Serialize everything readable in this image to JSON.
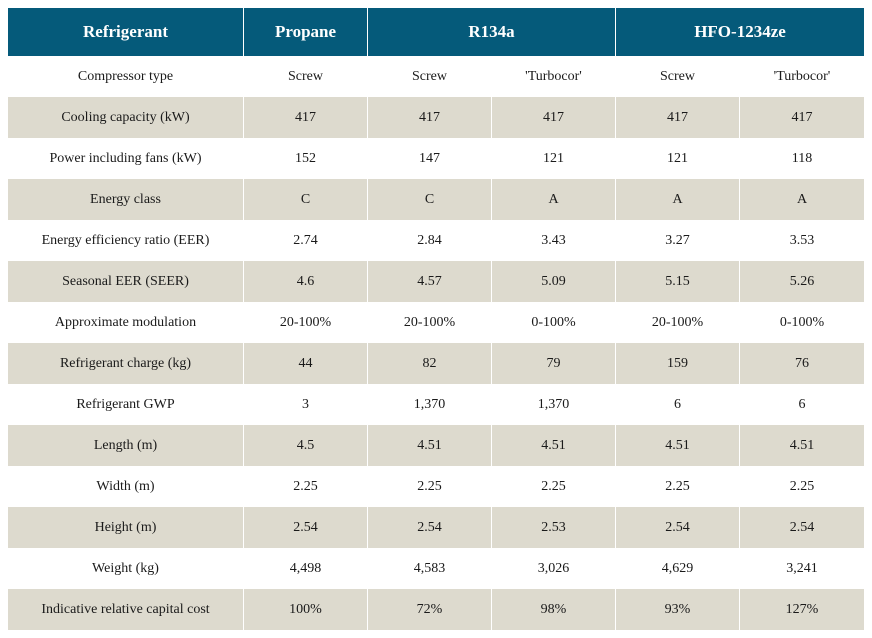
{
  "table": {
    "type": "table",
    "header_bg_color": "#055a7a",
    "header_text_color": "#ffffff",
    "row_odd_bg": "#ffffff",
    "row_even_bg": "#dddace",
    "text_color": "#1a1a1a",
    "header_fontsize": 17,
    "body_fontsize": 14,
    "headers": {
      "refrigerant": "Refrigerant",
      "propane": "Propane",
      "r134a": "R134a",
      "hfo": "HFO-1234ze"
    },
    "column_widths": {
      "label": 236,
      "propane": 124,
      "r134a_screw": 124,
      "r134a_turbo": 124,
      "hfo_screw": 124,
      "hfo_turbo": 124
    },
    "rows": [
      {
        "label": "Compressor type",
        "values": [
          "Screw",
          "Screw",
          "'Turbocor'",
          "Screw",
          "'Turbocor'"
        ]
      },
      {
        "label": "Cooling capacity (kW)",
        "values": [
          "417",
          "417",
          "417",
          "417",
          "417"
        ]
      },
      {
        "label": "Power including fans (kW)",
        "values": [
          "152",
          "147",
          "121",
          "121",
          "118"
        ]
      },
      {
        "label": "Energy class",
        "values": [
          "C",
          "C",
          "A",
          "A",
          "A"
        ]
      },
      {
        "label": "Energy efficiency ratio (EER)",
        "values": [
          "2.74",
          "2.84",
          "3.43",
          "3.27",
          "3.53"
        ]
      },
      {
        "label": "Seasonal EER (SEER)",
        "values": [
          "4.6",
          "4.57",
          "5.09",
          "5.15",
          "5.26"
        ]
      },
      {
        "label": "Approximate modulation",
        "values": [
          "20-100%",
          "20-100%",
          "0-100%",
          "20-100%",
          "0-100%"
        ]
      },
      {
        "label": "Refrigerant charge (kg)",
        "values": [
          "44",
          "82",
          "79",
          "159",
          "76"
        ]
      },
      {
        "label": "Refrigerant GWP",
        "values": [
          "3",
          "1,370",
          "1,370",
          "6",
          "6"
        ]
      },
      {
        "label": "Length (m)",
        "values": [
          "4.5",
          "4.51",
          "4.51",
          "4.51",
          "4.51"
        ]
      },
      {
        "label": "Width (m)",
        "values": [
          "2.25",
          "2.25",
          "2.25",
          "2.25",
          "2.25"
        ]
      },
      {
        "label": "Height (m)",
        "values": [
          "2.54",
          "2.54",
          "2.53",
          "2.54",
          "2.54"
        ]
      },
      {
        "label": "Weight (kg)",
        "values": [
          "4,498",
          "4,583",
          "3,026",
          "4,629",
          "3,241"
        ]
      },
      {
        "label": "Indicative relative capital cost",
        "values": [
          "100%",
          "72%",
          "98%",
          "93%",
          "127%"
        ]
      }
    ]
  }
}
